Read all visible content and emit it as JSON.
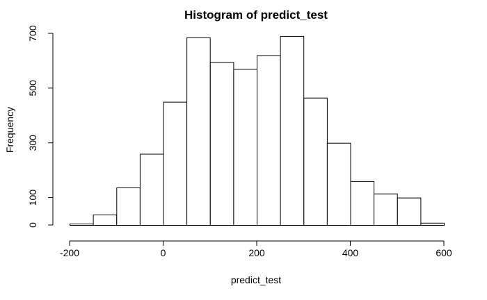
{
  "chart_data": {
    "type": "bar",
    "title": "Histogram of predict_test",
    "xlabel": "predict_test",
    "ylabel": "Frequency",
    "bin_edges": [
      -200,
      -150,
      -100,
      -50,
      0,
      50,
      100,
      150,
      200,
      250,
      300,
      350,
      400,
      450,
      500,
      550,
      600
    ],
    "values": [
      5,
      38,
      137,
      260,
      450,
      685,
      595,
      570,
      620,
      690,
      465,
      300,
      160,
      115,
      100,
      8
    ],
    "xlim": [
      -200,
      600
    ],
    "ylim": [
      0,
      700
    ],
    "x_ticks": [
      -200,
      0,
      200,
      400,
      600
    ],
    "x_tick_labels": [
      "-200",
      "0",
      "200",
      "400",
      "600"
    ],
    "y_ticks": [
      0,
      100,
      300,
      500,
      700
    ],
    "y_tick_labels": [
      "0",
      "100",
      "300",
      "500",
      "700"
    ],
    "grid": false,
    "legend": "none",
    "bar_fill": "#ffffff",
    "bar_stroke": "#000000"
  }
}
